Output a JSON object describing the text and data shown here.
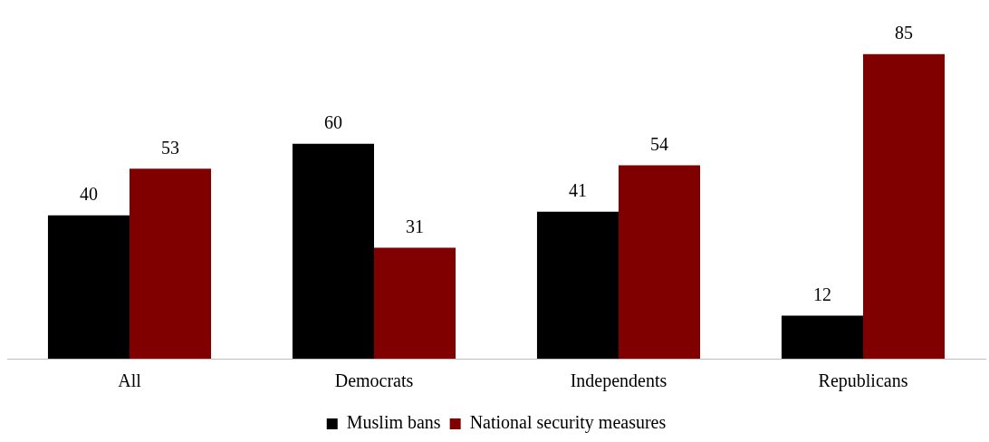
{
  "chart_data": {
    "type": "bar",
    "categories": [
      "All",
      "Democrats",
      "Independents",
      "Republicans"
    ],
    "series": [
      {
        "name": "Muslim bans",
        "color": "#000000",
        "values": [
          40,
          60,
          41,
          12
        ]
      },
      {
        "name": "National security measures",
        "color": "#800000",
        "values": [
          53,
          31,
          54,
          85
        ]
      }
    ],
    "data_labels": true,
    "legend": "bottom",
    "grid": false
  }
}
